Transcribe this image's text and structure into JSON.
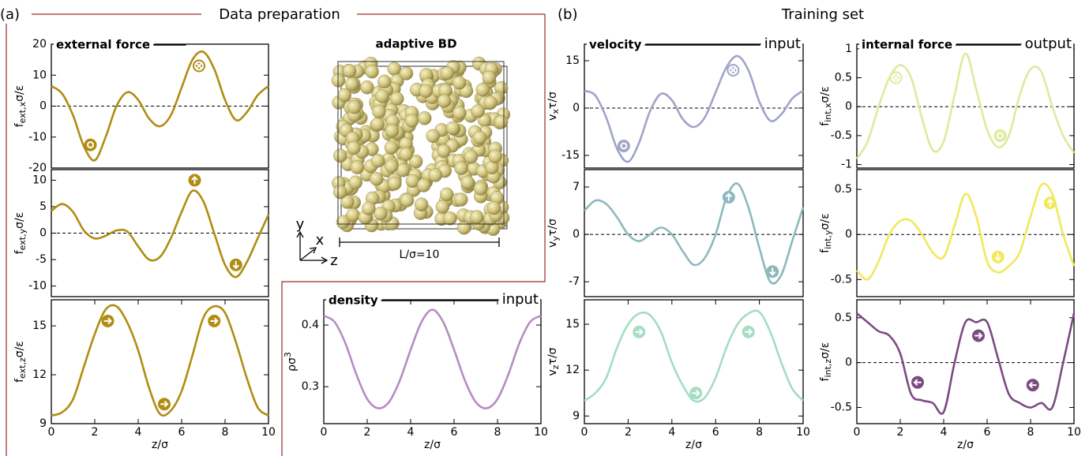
{
  "header": {
    "a": "(a)",
    "a_title": "Data preparation",
    "b": "(b)",
    "b_title": "Training set"
  },
  "snapshot": {
    "title": "adaptive BD",
    "axes": [
      "y",
      "x",
      "z"
    ],
    "scale": "L/σ=10"
  },
  "chart_data": [
    {
      "type": "line",
      "title": "external force",
      "ylabel": {
        "base": "f",
        "sub": "ext,x",
        "tail": "σ/ε"
      },
      "xlim": [
        0,
        10
      ],
      "ylim": [
        -20,
        20
      ],
      "yticks": [
        -20,
        -10,
        0,
        10,
        20
      ],
      "zero_line": true,
      "x": [
        0,
        0.5,
        1,
        1.5,
        2,
        2.5,
        3,
        3.5,
        4,
        4.5,
        5,
        5.5,
        6,
        6.5,
        7,
        7.5,
        8,
        8.5,
        9,
        9.5,
        10
      ],
      "series": [
        {
          "color": "#b08d12",
          "values": [
            6.5,
            4,
            -3,
            -13,
            -17.5,
            -10,
            0,
            4.5,
            2,
            -4,
            -6.5,
            -3,
            6,
            15,
            17.5,
            12,
            2,
            -4.5,
            -2,
            3.5,
            6.5
          ]
        }
      ],
      "markers": [
        {
          "x": 1.8,
          "y": -12.5,
          "symbol": "dot"
        },
        {
          "x": 6.8,
          "y": 13,
          "symbol": "cross"
        }
      ]
    },
    {
      "type": "line",
      "ylabel": {
        "base": "f",
        "sub": "ext,y",
        "tail": "σ/ε"
      },
      "xlim": [
        0,
        10
      ],
      "ylim": [
        -12,
        12
      ],
      "yticks": [
        -10,
        -5,
        0,
        5,
        10
      ],
      "zero_line": true,
      "x": [
        0,
        0.5,
        1,
        1.5,
        2,
        2.5,
        3,
        3.5,
        4,
        4.5,
        5,
        5.5,
        6,
        6.5,
        7,
        7.5,
        8,
        8.5,
        9,
        9.5,
        10
      ],
      "series": [
        {
          "color": "#b08d12",
          "values": [
            4.2,
            5.5,
            4,
            0.5,
            -1,
            -0.5,
            0.5,
            0.3,
            -2.5,
            -5,
            -4.5,
            -1,
            4,
            8,
            6,
            0,
            -6,
            -8.3,
            -5.5,
            -1,
            3.5
          ]
        }
      ],
      "markers": [
        {
          "x": 6.6,
          "y": 10,
          "symbol": "up"
        },
        {
          "x": 8.5,
          "y": -6,
          "symbol": "down"
        }
      ]
    },
    {
      "type": "line",
      "ylabel": {
        "base": "f",
        "sub": "ext,z",
        "tail": "σ/ε"
      },
      "xlabel": "z/σ",
      "xlim": [
        0,
        10
      ],
      "xticks": [
        0,
        2,
        4,
        6,
        8,
        10
      ],
      "ylim": [
        9,
        16.6
      ],
      "yticks": [
        9,
        12,
        15
      ],
      "zero_line": false,
      "x": [
        0,
        0.5,
        1,
        1.5,
        2,
        2.5,
        3,
        3.5,
        4,
        4.5,
        5,
        5.5,
        6,
        6.5,
        7,
        7.5,
        8,
        8.5,
        9,
        9.5,
        10
      ],
      "series": [
        {
          "color": "#b08d12",
          "values": [
            9.5,
            9.7,
            10.5,
            12.5,
            14.5,
            16,
            16.2,
            15.2,
            13.5,
            11.2,
            9.6,
            9.8,
            11,
            13.2,
            15.5,
            16.2,
            15.8,
            14,
            11.8,
            10,
            9.5
          ]
        }
      ],
      "markers": [
        {
          "x": 2.6,
          "y": 15.3,
          "symbol": "right"
        },
        {
          "x": 5.2,
          "y": 10.2,
          "symbol": "right"
        },
        {
          "x": 7.5,
          "y": 15.3,
          "symbol": "right"
        }
      ]
    },
    {
      "type": "line",
      "title": "density",
      "tag": "input",
      "ylabel": {
        "base": "ρσ",
        "sup": "3"
      },
      "xlabel": "z/σ",
      "xlim": [
        0,
        10
      ],
      "xticks": [
        0,
        2,
        4,
        6,
        8,
        10
      ],
      "ylim": [
        0.24,
        0.441
      ],
      "yticks": [
        0.3,
        0.4
      ],
      "zero_line": false,
      "x": [
        0,
        0.5,
        1,
        1.5,
        2,
        2.5,
        3,
        3.5,
        4,
        4.5,
        5,
        5.5,
        6,
        6.5,
        7,
        7.5,
        8,
        8.5,
        9,
        9.5,
        10
      ],
      "series": [
        {
          "color": "#b58cc2",
          "values": [
            0.415,
            0.405,
            0.37,
            0.32,
            0.28,
            0.265,
            0.275,
            0.31,
            0.36,
            0.405,
            0.425,
            0.405,
            0.36,
            0.31,
            0.275,
            0.265,
            0.28,
            0.32,
            0.37,
            0.405,
            0.415
          ]
        }
      ]
    },
    {
      "type": "line",
      "title": "velocity",
      "tag": "input",
      "ylabel": {
        "base": "v",
        "sub": "x",
        "tail": "τ/σ"
      },
      "xlim": [
        0,
        10
      ],
      "ylim": [
        -19,
        20.25
      ],
      "yticks": [
        -15,
        0,
        15
      ],
      "zero_line": true,
      "x": [
        0,
        0.5,
        1,
        1.5,
        2,
        2.5,
        3,
        3.5,
        4,
        4.5,
        5,
        5.5,
        6,
        6.5,
        7,
        7.5,
        8,
        8.5,
        9,
        9.5,
        10
      ],
      "series": [
        {
          "color": "#a0a4c8",
          "values": [
            5.5,
            4,
            -3,
            -13,
            -17,
            -11,
            -1,
            4.5,
            2.5,
            -3.5,
            -6,
            -3,
            5,
            13,
            16.5,
            12,
            2,
            -4,
            -2,
            3,
            5.5
          ]
        }
      ],
      "markers": [
        {
          "x": 1.8,
          "y": -12,
          "symbol": "dot"
        },
        {
          "x": 6.8,
          "y": 12,
          "symbol": "cross"
        }
      ]
    },
    {
      "type": "line",
      "ylabel": {
        "base": "v",
        "sub": "y",
        "tail": "τ/σ"
      },
      "xlim": [
        0,
        10
      ],
      "ylim": [
        -9.2,
        9.57
      ],
      "yticks": [
        -7,
        0,
        7
      ],
      "zero_line": true,
      "x": [
        0,
        0.5,
        1,
        1.5,
        2,
        2.5,
        3,
        3.5,
        4,
        4.5,
        5,
        5.5,
        6,
        6.5,
        7,
        7.5,
        8,
        8.5,
        9,
        9.5,
        10
      ],
      "series": [
        {
          "color": "#8cb9bd",
          "values": [
            3.5,
            5,
            4.5,
            2.5,
            0,
            -1,
            0,
            1,
            0,
            -2.5,
            -4.5,
            -3.5,
            0,
            5.5,
            7.5,
            4,
            -2,
            -7,
            -6,
            -1,
            4
          ]
        }
      ],
      "markers": [
        {
          "x": 6.6,
          "y": 5.5,
          "symbol": "up"
        },
        {
          "x": 8.6,
          "y": -5.5,
          "symbol": "down"
        }
      ]
    },
    {
      "type": "line",
      "ylabel": {
        "base": "v",
        "sub": "z",
        "tail": "τ/σ"
      },
      "xlabel": "z/σ",
      "xlim": [
        0,
        10
      ],
      "xticks": [
        0,
        2,
        4,
        6,
        8,
        10
      ],
      "ylim": [
        8.5,
        16.6
      ],
      "yticks": [
        9,
        12,
        15
      ],
      "zero_line": false,
      "x": [
        0,
        0.5,
        1,
        1.5,
        2,
        2.5,
        3,
        3.5,
        4,
        4.5,
        5,
        5.5,
        6,
        6.5,
        7,
        7.5,
        8,
        8.5,
        9,
        9.5,
        10
      ],
      "series": [
        {
          "color": "#a5ddc2",
          "values": [
            10,
            10.5,
            11.5,
            13.5,
            15,
            15.7,
            15.6,
            14.5,
            12.5,
            11,
            10,
            10.2,
            11.5,
            13.5,
            15,
            15.7,
            15.8,
            14.5,
            12.5,
            10.8,
            10
          ]
        }
      ],
      "markers": [
        {
          "x": 2.5,
          "y": 14.5,
          "symbol": "right"
        },
        {
          "x": 5.1,
          "y": 10.5,
          "symbol": "right"
        },
        {
          "x": 7.5,
          "y": 14.5,
          "symbol": "right"
        }
      ]
    },
    {
      "type": "line",
      "title": "internal force",
      "tag": "output",
      "ylabel": {
        "base": "f",
        "sub": "int,x",
        "tail": "σ/ε"
      },
      "xlim": [
        0,
        10
      ],
      "ylim": [
        -1.06,
        1.08
      ],
      "yticks": [
        -1,
        -0.5,
        0,
        0.5,
        1
      ],
      "zero_line": true,
      "x": [
        0,
        0.5,
        1,
        1.5,
        2,
        2.5,
        3,
        3.5,
        4,
        4.5,
        5,
        5.5,
        6,
        6.5,
        7,
        7.5,
        8,
        8.5,
        9,
        9.5,
        10
      ],
      "series": [
        {
          "color": "#dceb9c",
          "values": [
            -0.9,
            -0.6,
            0,
            0.5,
            0.72,
            0.5,
            -0.2,
            -0.75,
            -0.6,
            0.2,
            0.92,
            0.3,
            -0.4,
            -0.7,
            -0.5,
            0.2,
            0.65,
            0.6,
            0,
            -0.5,
            -0.8
          ]
        }
      ],
      "markers": [
        {
          "x": 1.8,
          "y": 0.5,
          "symbol": "cross"
        },
        {
          "x": 6.6,
          "y": -0.5,
          "symbol": "dot"
        }
      ]
    },
    {
      "type": "line",
      "ylabel": {
        "base": "f",
        "sub": "int,y",
        "tail": "σ/ε"
      },
      "xlim": [
        0,
        10
      ],
      "ylim": [
        -0.69,
        0.72
      ],
      "yticks": [
        -0.5,
        0,
        0.5
      ],
      "zero_line": true,
      "x": [
        0,
        0.5,
        1,
        1.5,
        2,
        2.5,
        3,
        3.5,
        4,
        4.5,
        5,
        5.5,
        6,
        6.5,
        7,
        7.5,
        8,
        8.5,
        9,
        9.5,
        10
      ],
      "series": [
        {
          "color": "#f2e85c",
          "values": [
            -0.4,
            -0.5,
            -0.3,
            0,
            0.15,
            0.15,
            0,
            -0.2,
            -0.25,
            0.1,
            0.45,
            0.2,
            -0.3,
            -0.42,
            -0.35,
            -0.2,
            0.2,
            0.55,
            0.45,
            0,
            -0.35
          ]
        }
      ],
      "markers": [
        {
          "x": 6.5,
          "y": -0.25,
          "symbol": "down"
        },
        {
          "x": 8.9,
          "y": 0.35,
          "symbol": "up"
        }
      ]
    },
    {
      "type": "line",
      "ylabel": {
        "base": "f",
        "sub": "int,z",
        "tail": "σ/ε"
      },
      "xlabel": "z/σ",
      "xlim": [
        0,
        10
      ],
      "xticks": [
        0,
        2,
        4,
        6,
        8,
        10
      ],
      "ylim": [
        -0.68,
        0.7
      ],
      "yticks": [
        -0.5,
        0,
        0.5
      ],
      "zero_line": true,
      "x": [
        0,
        0.5,
        1,
        1.5,
        2,
        2.5,
        3,
        3.5,
        4,
        4.5,
        5,
        5.5,
        6,
        6.5,
        7,
        7.5,
        8,
        8.5,
        9,
        9.5,
        10
      ],
      "series": [
        {
          "color": "#7b4b82",
          "values": [
            0.55,
            0.45,
            0.35,
            0.3,
            0.1,
            -0.35,
            -0.42,
            -0.45,
            -0.55,
            0,
            0.45,
            0.45,
            0.45,
            0.05,
            -0.35,
            -0.45,
            -0.5,
            -0.45,
            -0.5,
            0,
            0.55
          ]
        }
      ],
      "markers": [
        {
          "x": 2.8,
          "y": -0.22,
          "symbol": "left"
        },
        {
          "x": 5.6,
          "y": 0.3,
          "symbol": "left-right"
        },
        {
          "x": 8.1,
          "y": -0.25,
          "symbol": "left"
        }
      ]
    }
  ]
}
